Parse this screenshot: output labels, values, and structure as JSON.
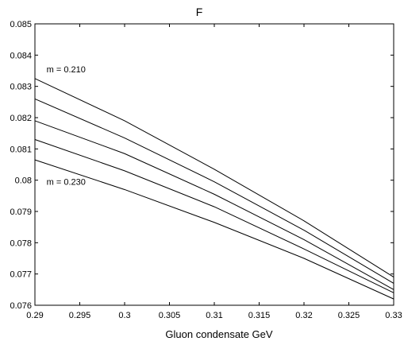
{
  "chart_data": {
    "type": "line",
    "title": "F",
    "xlabel": "Gluon condensate  GeV",
    "ylabel": "",
    "xlim": [
      0.29,
      0.33
    ],
    "ylim": [
      0.076,
      0.085
    ],
    "grid": false,
    "x_ticks": [
      "0.29",
      "0.295",
      "0.3",
      "0.305",
      "0.31",
      "0.315",
      "0.32",
      "0.325",
      "0.33"
    ],
    "y_ticks": [
      "0.076",
      "0.077",
      "0.078",
      "0.079",
      "0.08",
      "0.081",
      "0.082",
      "0.083",
      "0.084",
      "0.085"
    ],
    "x": [
      0.29,
      0.3,
      0.31,
      0.32,
      0.33
    ],
    "series": [
      {
        "values": [
          0.08325,
          0.0819,
          0.08035,
          0.0787,
          0.0769
        ]
      },
      {
        "values": [
          0.0826,
          0.08135,
          0.07995,
          0.0784,
          0.0767
        ]
      },
      {
        "values": [
          0.0819,
          0.08085,
          0.07955,
          0.0781,
          0.0765
        ]
      },
      {
        "values": [
          0.0813,
          0.0803,
          0.07915,
          0.0778,
          0.0764
        ]
      },
      {
        "values": [
          0.08065,
          0.0797,
          0.07865,
          0.0775,
          0.0762
        ]
      }
    ],
    "annotations": [
      {
        "text": "m = 0.210",
        "x": 0.2905,
        "y": 0.0833
      },
      {
        "text": "m = 0.230",
        "x": 0.2905,
        "y": 0.0797
      }
    ]
  }
}
